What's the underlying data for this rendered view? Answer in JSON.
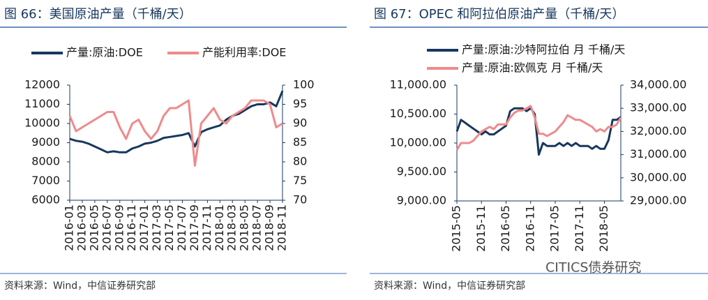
{
  "chart_data": [
    {
      "type": "line",
      "title": "图 66：美国原油产量（千桶/天）",
      "source": "资料来源：Wind，中信证券研究部",
      "categories": [
        "2016-01",
        null,
        "2016-03",
        null,
        "2016-05",
        null,
        "2016-07",
        null,
        "2016-09",
        null,
        "2016-11",
        null,
        "2017-01",
        null,
        "2017-03",
        null,
        "2017-05",
        null,
        "2017-07",
        null,
        "2017-09",
        null,
        "2017-11",
        null,
        "2018-01",
        null,
        "2018-03",
        null,
        "2018-05",
        null,
        "2018-07",
        null,
        "2018-09",
        null,
        "2018-11"
      ],
      "series": [
        {
          "name": "产量:原油:DOE",
          "color": "#17375e",
          "values": [
            9200,
            9100,
            9050,
            8950,
            8800,
            8650,
            8500,
            8550,
            8500,
            8500,
            8700,
            8800,
            8950,
            9000,
            9100,
            9250,
            9300,
            9350,
            9400,
            9500,
            8800,
            9550,
            9700,
            9800,
            9900,
            10200,
            10400,
            10500,
            10700,
            10900,
            11000,
            11000,
            11100,
            10900,
            11700
          ]
        },
        {
          "name": "产能利用率:DOE",
          "color": "#f08a8a",
          "axis": "y2",
          "values": [
            92,
            88,
            89,
            90,
            91,
            92,
            93,
            93,
            89,
            86,
            90,
            91,
            88,
            86,
            88,
            92,
            94,
            94,
            95,
            96,
            79,
            90,
            92,
            94,
            91,
            90,
            92,
            93,
            94,
            96,
            96,
            96,
            95,
            89,
            90
          ]
        }
      ],
      "ylim": [
        6000,
        12000
      ],
      "yticks": [
        6000,
        7000,
        8000,
        9000,
        10000,
        11000,
        12000
      ],
      "y2lim": [
        70,
        100
      ],
      "y2ticks": [
        70,
        75,
        80,
        85,
        90,
        95,
        100
      ],
      "legend": "top",
      "grid": false
    },
    {
      "type": "line",
      "title": "图 67：OPEC 和阿拉伯原油产量（千桶/天）",
      "source": "资料来源：Wind，中信证券研究部",
      "categories": [
        "2015-05",
        null,
        null,
        null,
        null,
        null,
        "2015-11",
        null,
        null,
        null,
        null,
        null,
        "2016-05",
        null,
        null,
        null,
        null,
        null,
        "2016-11",
        null,
        null,
        null,
        null,
        null,
        "2017-05",
        null,
        null,
        null,
        null,
        null,
        "2017-11",
        null,
        null,
        null,
        null,
        null,
        "2018-05",
        null,
        null,
        null,
        null
      ],
      "series": [
        {
          "name": "产量:原油:沙特阿拉伯 月 千桶/天",
          "color": "#17375e",
          "values": [
            10200,
            10400,
            10350,
            10300,
            10250,
            10200,
            10150,
            10200,
            10150,
            10150,
            10200,
            10250,
            10300,
            10550,
            10600,
            10600,
            10600,
            10550,
            10600,
            10500,
            9800,
            10000,
            9950,
            9950,
            9950,
            10000,
            9950,
            10000,
            9950,
            10000,
            9950,
            9950,
            9950,
            9900,
            9950,
            9900,
            9900,
            10050,
            10400,
            10400,
            10450
          ]
        },
        {
          "name": "产量:原油:欧佩克 月 千桶/天",
          "color": "#f08a8a",
          "axis": "y2",
          "values": [
            31200,
            31500,
            31500,
            31500,
            31600,
            31800,
            32000,
            32100,
            32200,
            32100,
            32300,
            32300,
            32300,
            32600,
            32800,
            32900,
            32900,
            33000,
            33100,
            32600,
            31900,
            31900,
            31800,
            31900,
            32000,
            32200,
            32400,
            32700,
            32600,
            32500,
            32500,
            32400,
            32300,
            32200,
            32000,
            32100,
            32000,
            32200,
            32200,
            32300,
            32600
          ]
        }
      ],
      "ylim": [
        9000,
        11000
      ],
      "yticks": [
        {
          "value": 9000,
          "label": "9,000.00"
        },
        {
          "value": 9500,
          "label": "9,500.00"
        },
        {
          "value": 10000,
          "label": "10,000.00"
        },
        {
          "value": 10500,
          "label": "10,500.00"
        },
        {
          "value": 11000,
          "label": "11,000.00"
        }
      ],
      "y2lim": [
        29000,
        34000
      ],
      "y2ticks": [
        {
          "value": 29000,
          "label": "29,000.00"
        },
        {
          "value": 30000,
          "label": "30,000.00"
        },
        {
          "value": 31000,
          "label": "31,000.00"
        },
        {
          "value": 32000,
          "label": "32,000.00"
        },
        {
          "value": 33000,
          "label": "33,000.00"
        },
        {
          "value": 34000,
          "label": "34,000.00"
        }
      ],
      "legend": "top",
      "grid": false
    }
  ],
  "watermark": "CITICS债券研究"
}
